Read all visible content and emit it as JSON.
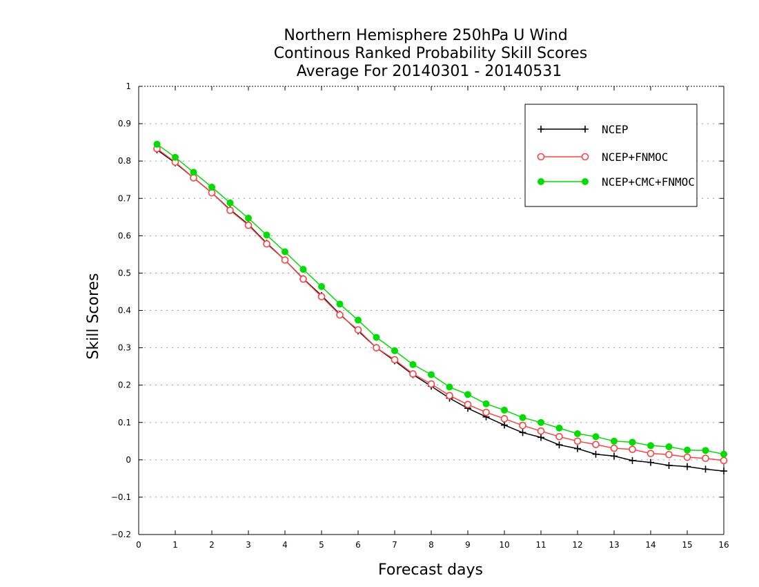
{
  "chart_data": {
    "type": "line",
    "title": [
      "Northern Hemisphere 250hPa U Wind",
      "Continous Ranked Probability Skill Scores",
      "Average For 20140301 - 20140531"
    ],
    "xlabel": "Forecast days",
    "ylabel": "Skill Scores",
    "xlim": [
      0,
      16
    ],
    "ylim": [
      -0.2,
      1
    ],
    "xticks": [
      0,
      1,
      2,
      3,
      4,
      5,
      6,
      7,
      8,
      9,
      10,
      11,
      12,
      13,
      14,
      15,
      16
    ],
    "xtick_labels": [
      "0",
      "1",
      "2",
      "3",
      "4",
      "5",
      "6",
      "7",
      "8",
      "9",
      "10",
      "11",
      "12",
      "13",
      "14",
      "15",
      "16"
    ],
    "yticks": [
      -0.2,
      -0.1,
      0,
      0.1,
      0.2,
      0.3,
      0.4,
      0.5,
      0.6,
      0.7,
      0.8,
      0.9,
      1
    ],
    "ytick_labels": [
      "−0.2",
      "−0.1",
      "0",
      "0.1",
      "0.2",
      "0.3",
      "0.4",
      "0.5",
      "0.6",
      "0.7",
      "0.8",
      "0.9",
      "1"
    ],
    "grid": true,
    "legend_position": "top-right",
    "x": [
      0.5,
      1,
      1.5,
      2,
      2.5,
      3,
      3.5,
      4,
      4.5,
      5,
      5.5,
      6,
      6.5,
      7,
      7.5,
      8,
      8.5,
      9,
      9.5,
      10,
      10.5,
      11,
      11.5,
      12,
      12.5,
      13,
      13.5,
      14,
      14.5,
      15,
      15.5,
      16
    ],
    "series": [
      {
        "name": "NCEP",
        "color": "#000000",
        "marker": "plus",
        "values": [
          0.83,
          0.795,
          0.755,
          0.715,
          0.67,
          0.63,
          0.58,
          0.535,
          0.485,
          0.44,
          0.39,
          0.345,
          0.3,
          0.265,
          0.228,
          0.197,
          0.165,
          0.138,
          0.115,
          0.093,
          0.073,
          0.06,
          0.04,
          0.03,
          0.015,
          0.01,
          -0.002,
          -0.007,
          -0.015,
          -0.018,
          -0.025,
          -0.03
        ]
      },
      {
        "name": "NCEP+FNMOC",
        "color": "#ff4040",
        "marker": "open-circle",
        "values": [
          0.833,
          0.797,
          0.755,
          0.715,
          0.668,
          0.628,
          0.578,
          0.535,
          0.484,
          0.437,
          0.388,
          0.348,
          0.3,
          0.268,
          0.23,
          0.203,
          0.172,
          0.148,
          0.127,
          0.11,
          0.092,
          0.077,
          0.062,
          0.05,
          0.041,
          0.031,
          0.028,
          0.017,
          0.014,
          0.007,
          0.004,
          -0.002
        ]
      },
      {
        "name": "NCEP+CMC+FNMOC",
        "color": "#00dd00",
        "marker": "filled-circle",
        "values": [
          0.845,
          0.81,
          0.77,
          0.73,
          0.688,
          0.647,
          0.602,
          0.557,
          0.51,
          0.464,
          0.417,
          0.374,
          0.328,
          0.292,
          0.255,
          0.228,
          0.195,
          0.175,
          0.15,
          0.133,
          0.113,
          0.1,
          0.085,
          0.07,
          0.062,
          0.05,
          0.047,
          0.038,
          0.035,
          0.026,
          0.025,
          0.015
        ]
      }
    ]
  }
}
